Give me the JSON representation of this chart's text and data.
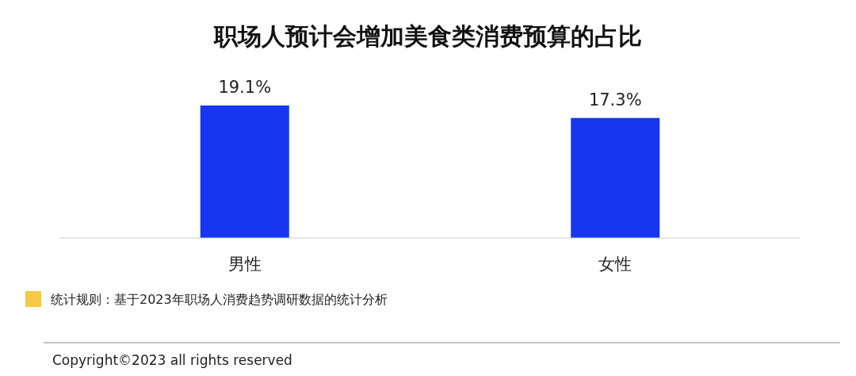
{
  "chart_data": {
    "type": "bar",
    "title": "职场人预计会增加美食类消费预算的占比",
    "categories": [
      "男性",
      "女性"
    ],
    "values": [
      19.1,
      17.3
    ],
    "value_labels": [
      "19.1%",
      "17.3%"
    ],
    "color": "#1636f0",
    "annotations": [
      "统计规则：基于2023年职场人消费趋势调研数据的统计分析",
      "Copyright©2023 all rights reserved"
    ]
  }
}
